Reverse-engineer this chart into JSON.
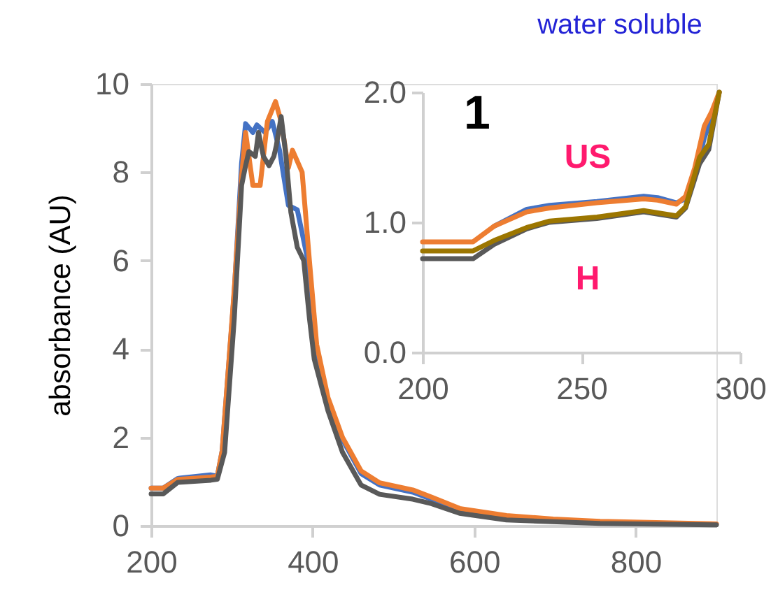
{
  "chart_data": [
    {
      "type": "line",
      "ylabel": "absorbance (AU)",
      "xlim": [
        200,
        900
      ],
      "xticks": [
        200,
        400,
        600,
        800
      ],
      "ylim": [
        0,
        10
      ],
      "yticks": [
        0,
        2,
        4,
        6,
        8,
        10
      ],
      "grid": false,
      "legend": false,
      "marker": "none",
      "line_style": "solid",
      "series": [
        {
          "color": "#4472c4",
          "x": [
            200,
            215,
            233,
            274,
            282,
            288,
            303,
            312,
            317,
            326,
            331,
            341,
            350,
            359,
            370,
            381,
            393,
            401,
            419,
            437,
            460,
            483,
            524,
            547,
            582,
            640
          ],
          "values": [
            0.85,
            0.85,
            1.07,
            1.15,
            1.12,
            1.7,
            5.3,
            8.2,
            9.1,
            8.9,
            9.07,
            8.9,
            9.15,
            8.5,
            7.25,
            7.15,
            6.1,
            4.1,
            2.85,
            1.95,
            1.18,
            0.92,
            0.76,
            0.6,
            0.35,
            0.2
          ]
        },
        {
          "color": "#ed7d31",
          "x": [
            200,
            215,
            233,
            274,
            282,
            288,
            303,
            312,
            317,
            326,
            335,
            344,
            354,
            361,
            370,
            375,
            387,
            396,
            405,
            419,
            437,
            460,
            483,
            524,
            547,
            582,
            640,
            698,
            756,
            900
          ],
          "values": [
            0.85,
            0.85,
            1.05,
            1.1,
            1.12,
            1.7,
            5.35,
            7.9,
            8.9,
            7.7,
            7.7,
            9.15,
            9.6,
            9.15,
            8.1,
            8.5,
            8.0,
            6.0,
            4.1,
            2.9,
            2.0,
            1.24,
            0.97,
            0.81,
            0.65,
            0.39,
            0.23,
            0.15,
            0.1,
            0.04
          ]
        },
        {
          "color": "#595959",
          "x": [
            200,
            215,
            233,
            274,
            282,
            291,
            303,
            312,
            317,
            321,
            329,
            333,
            339,
            346,
            352,
            355,
            361,
            367,
            373,
            381,
            389,
            396,
            402,
            419,
            437,
            460,
            483,
            524,
            547,
            582,
            640,
            756,
            900
          ],
          "values": [
            0.72,
            0.72,
            0.98,
            1.03,
            1.05,
            1.66,
            4.7,
            7.7,
            8.15,
            8.47,
            8.36,
            8.9,
            8.36,
            8.15,
            8.36,
            8.6,
            9.26,
            8.36,
            7.1,
            6.3,
            6.0,
            4.7,
            3.77,
            2.6,
            1.66,
            0.92,
            0.71,
            0.6,
            0.5,
            0.28,
            0.13,
            0.05,
            0.02
          ]
        }
      ]
    },
    {
      "type": "line",
      "title": "water soluble",
      "xlim": [
        200,
        300
      ],
      "xticks": [
        200,
        250,
        300
      ],
      "ylim": [
        0,
        2
      ],
      "yticks": [
        {
          "value": 0,
          "label": "0.0"
        },
        {
          "value": 1,
          "label": "1.0"
        },
        {
          "value": 2,
          "label": "2.0"
        }
      ],
      "grid": false,
      "legend": false,
      "marker": "none",
      "line_style": "solid",
      "annotations": [
        "1",
        "US",
        "H"
      ],
      "series": [
        {
          "color": "#4472c4",
          "x": [
            222.5,
            232.8,
            240,
            254.9,
            269.6,
            274,
            279.9,
            282.8,
            285.7,
            288.7,
            291
          ],
          "values": [
            0.97,
            1.1,
            1.13,
            1.16,
            1.2,
            1.19,
            1.15,
            1.18,
            1.35,
            1.65,
            1.8
          ]
        },
        {
          "color": "#ed7d31",
          "x": [
            200,
            215.9,
            222.5,
            232.8,
            240,
            254.9,
            269.6,
            274,
            279.9,
            282.8,
            285.7,
            288.7,
            291,
            293.4
          ],
          "values": [
            0.85,
            0.85,
            0.97,
            1.08,
            1.11,
            1.15,
            1.18,
            1.17,
            1.14,
            1.2,
            1.42,
            1.74,
            1.85,
            2.0
          ]
        },
        {
          "color": "#595959",
          "x": [
            200,
            215.9,
            222.5,
            232.8,
            240,
            254.9,
            269.6,
            279.9,
            282.8,
            287.2,
            290.1,
            293.4
          ],
          "values": [
            0.72,
            0.72,
            0.83,
            0.95,
            1.0,
            1.03,
            1.08,
            1.04,
            1.11,
            1.45,
            1.56,
            2.0
          ]
        },
        {
          "color": "#9c7600",
          "x": [
            200,
            215.9,
            222.5,
            232.8,
            240,
            254.9,
            269.6,
            279.9,
            282.8,
            287.2,
            290.1,
            293.4
          ],
          "values": [
            0.78,
            0.78,
            0.86,
            0.96,
            1.01,
            1.04,
            1.09,
            1.05,
            1.12,
            1.5,
            1.6,
            2.0
          ]
        }
      ]
    }
  ]
}
